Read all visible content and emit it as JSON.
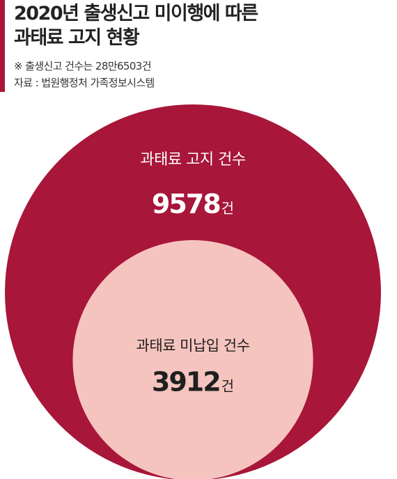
{
  "title_lines": [
    "2020년 출생신고 미이행에 따른",
    "과태료 고지 현황"
  ],
  "note": "※ 출생신고 건수는 28만6503건",
  "source": "자료 : 법원행정처 가족정보시스템",
  "colors": {
    "accent": "#a8163a",
    "outer_circle": "#a8163a",
    "inner_circle": "#f5c4be",
    "title_text": "#222222"
  },
  "chart_data": {
    "type": "nested-circle",
    "unit": "건",
    "items": [
      {
        "label": "과태료 고지 건수",
        "value": 9578,
        "display": "9578"
      },
      {
        "label": "과태료 미납입 건수",
        "value": 3912,
        "display": "3912"
      }
    ]
  }
}
